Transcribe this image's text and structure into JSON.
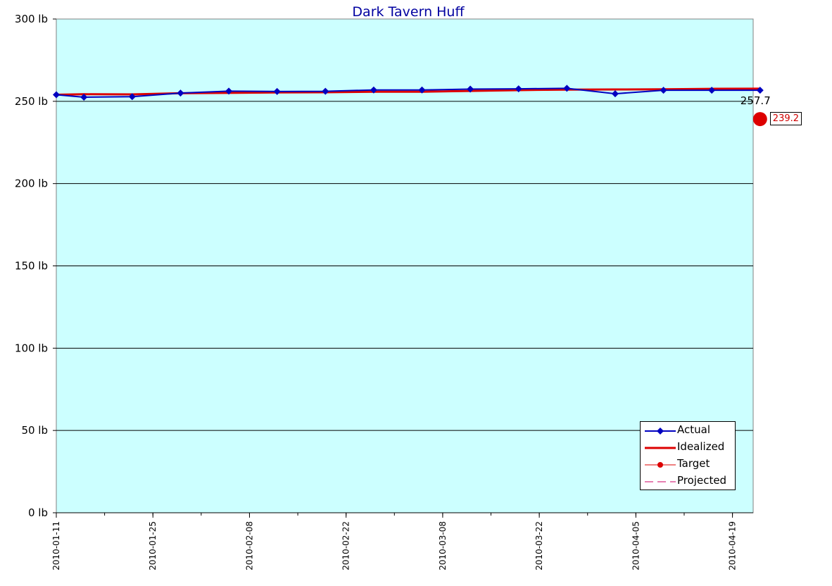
{
  "chart_data": {
    "type": "line",
    "title": "Dark Tavern Huff",
    "xlabel": "",
    "ylabel": "",
    "y_unit": "lb",
    "ylim": [
      0,
      300
    ],
    "y_ticks": [
      0,
      50,
      100,
      150,
      200,
      250,
      300
    ],
    "y_tick_labels": [
      "0 lb",
      "50 lb",
      "100 lb",
      "150 lb",
      "200 lb",
      "250 lb",
      "300 lb"
    ],
    "xlim": [
      "2010-01-11",
      "2010-04-22"
    ],
    "x_tick_labels": [
      "2010-01-11",
      "2010-01-25",
      "2010-02-08",
      "2010-02-22",
      "2010-03-08",
      "2010-03-22",
      "2010-04-05",
      "2010-04-19"
    ],
    "grid": true,
    "plot_background": "#ccffff",
    "legend_position": "bottom-right",
    "series": [
      {
        "name": "Actual",
        "color": "#0000c0",
        "marker": "diamond",
        "points": [
          {
            "x": "2010-01-11",
            "y": 254.0
          },
          {
            "x": "2010-01-15",
            "y": 252.5
          },
          {
            "x": "2010-01-22",
            "y": 252.8
          },
          {
            "x": "2010-01-29",
            "y": 255.0
          },
          {
            "x": "2010-02-05",
            "y": 256.2
          },
          {
            "x": "2010-02-12",
            "y": 256.0
          },
          {
            "x": "2010-02-19",
            "y": 256.1
          },
          {
            "x": "2010-02-26",
            "y": 256.9
          },
          {
            "x": "2010-03-05",
            "y": 256.9
          },
          {
            "x": "2010-03-12",
            "y": 257.4
          },
          {
            "x": "2010-03-19",
            "y": 257.6
          },
          {
            "x": "2010-03-26",
            "y": 257.9
          },
          {
            "x": "2010-04-02",
            "y": 254.6
          },
          {
            "x": "2010-04-09",
            "y": 256.7
          },
          {
            "x": "2010-04-16",
            "y": 256.7
          },
          {
            "x": "2010-04-23",
            "y": 256.7
          }
        ]
      },
      {
        "name": "Idealized",
        "color": "#dd0000",
        "points": [
          {
            "x": "2010-01-11",
            "y": 254.0
          },
          {
            "x": "2010-01-15",
            "y": 254.3
          },
          {
            "x": "2010-01-22",
            "y": 254.2
          },
          {
            "x": "2010-01-29",
            "y": 254.9
          },
          {
            "x": "2010-02-05",
            "y": 255.1
          },
          {
            "x": "2010-02-12",
            "y": 255.4
          },
          {
            "x": "2010-02-19",
            "y": 255.5
          },
          {
            "x": "2010-02-26",
            "y": 255.8
          },
          {
            "x": "2010-03-05",
            "y": 255.8
          },
          {
            "x": "2010-03-12",
            "y": 256.3
          },
          {
            "x": "2010-03-19",
            "y": 256.8
          },
          {
            "x": "2010-03-26",
            "y": 257.1
          },
          {
            "x": "2010-04-02",
            "y": 257.2
          },
          {
            "x": "2010-04-09",
            "y": 257.3
          },
          {
            "x": "2010-04-16",
            "y": 257.6
          },
          {
            "x": "2010-04-23",
            "y": 257.7
          }
        ]
      },
      {
        "name": "Target",
        "color": "#dd0000",
        "marker": "circle",
        "points": [
          {
            "x": "2010-04-23",
            "y": 239.2
          }
        ]
      },
      {
        "name": "Projected",
        "color": "#cc0066",
        "dashed": true,
        "points": []
      }
    ],
    "annotations": [
      {
        "text": "257.7",
        "x": "2010-04-23",
        "y": 257.7,
        "style": "plain"
      },
      {
        "text": "239.2",
        "x": "2010-04-23",
        "y": 239.2,
        "style": "boxed-red"
      }
    ]
  }
}
